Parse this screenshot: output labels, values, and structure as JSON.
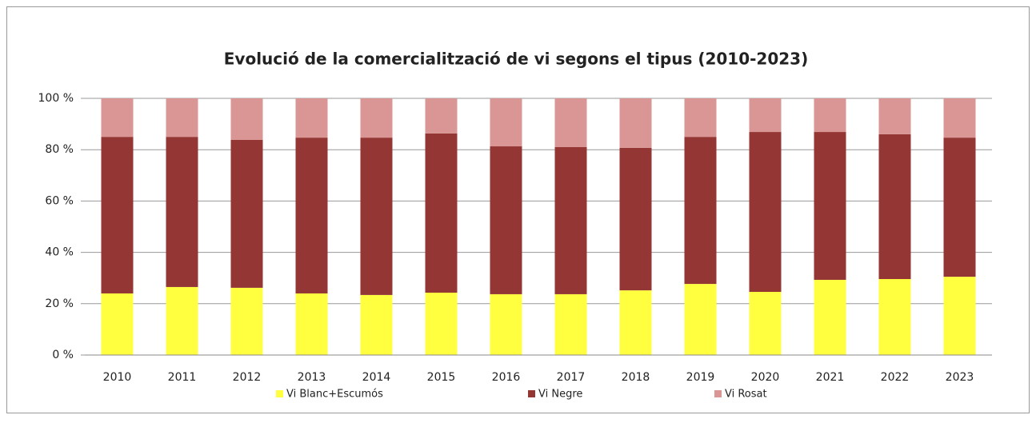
{
  "chart_data": {
    "type": "stacked_bar",
    "title": "Evolució de la comercialització de vi segons el tipus  (2010-2023)",
    "categories": [
      "2010",
      "2011",
      "2012",
      "2013",
      "2014",
      "2015",
      "2016",
      "2017",
      "2018",
      "2019",
      "2020",
      "2021",
      "2022",
      "2023"
    ],
    "series": [
      {
        "name": "Vi Blanc+Escumós",
        "color": "#ffff40",
        "values": [
          24.0,
          26.5,
          26.2,
          24.0,
          23.4,
          24.3,
          23.7,
          23.7,
          25.2,
          27.7,
          24.6,
          29.3,
          29.6,
          30.5
        ]
      },
      {
        "name": "Vi Negre",
        "color": "#943634",
        "values": [
          61.0,
          58.5,
          57.6,
          60.7,
          61.3,
          62.0,
          57.6,
          57.3,
          55.5,
          57.3,
          62.3,
          57.6,
          56.4,
          54.2
        ]
      },
      {
        "name": "Vi Rosat",
        "color": "#d99694",
        "values": [
          15.0,
          15.0,
          16.2,
          15.3,
          15.3,
          13.7,
          18.7,
          19.0,
          19.3,
          15.0,
          13.1,
          13.1,
          14.0,
          15.3
        ]
      }
    ],
    "ylim": [
      0,
      100
    ],
    "yticks": [
      {
        "value": 0,
        "label": "0 %"
      },
      {
        "value": 20,
        "label": "20 %"
      },
      {
        "value": 40,
        "label": "40 %"
      },
      {
        "value": 60,
        "label": "60 %"
      },
      {
        "value": 80,
        "label": "80 %"
      },
      {
        "value": 100,
        "label": "100 %"
      }
    ],
    "grid": true,
    "legend": "bottom"
  }
}
